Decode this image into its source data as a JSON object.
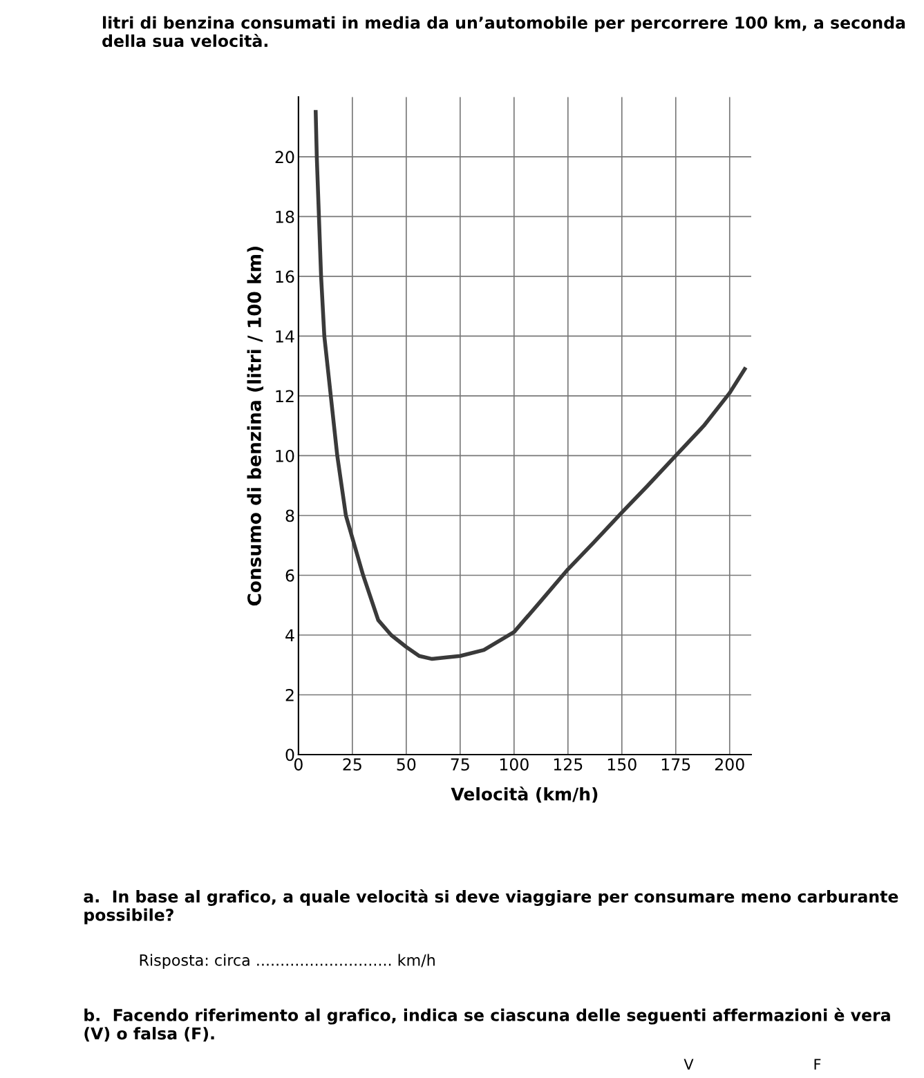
{
  "chart_data": {
    "type": "line",
    "title": "litri di benzina consumati in media da un’automobile per percorrere 100 km, a seconda della sua velocità.",
    "xlabel": "Velocità (km/h)",
    "ylabel": "Consumo di benzina (litri / 100 km)",
    "series": [
      {
        "color": "#3a3a3a",
        "x": [
          8,
          8.5,
          10.5,
          12,
          15,
          18,
          22,
          26,
          30,
          37,
          43,
          50,
          56,
          62,
          68,
          75,
          86,
          100,
          112,
          125,
          137,
          150,
          162,
          175,
          188,
          200,
          207
        ],
        "values": [
          21.5,
          20,
          16,
          14,
          12,
          10,
          8,
          7,
          6,
          4.5,
          4,
          3.6,
          3.3,
          3.2,
          3.25,
          3.3,
          3.5,
          4.1,
          5.1,
          6.2,
          7.1,
          8.1,
          9,
          10,
          11,
          12.1,
          12.9
        ]
      }
    ],
    "xlim": [
      0,
      210
    ],
    "ylim": [
      0,
      22
    ],
    "xticks": [
      0,
      25,
      50,
      75,
      100,
      125,
      150,
      175,
      200
    ],
    "yticks": [
      0,
      2,
      4,
      6,
      8,
      10,
      12,
      14,
      16,
      18,
      20
    ],
    "grid": true,
    "marker": "none",
    "line_style": "solid",
    "annotations": [
      "a.  In base al grafico, a quale velocità si deve viaggiare per consumare meno carburante possibile?",
      "Risposta: circa ............................ km/h",
      "b.  Facendo riferimento al grafico, indica se ciascuna delle seguenti affermazioni è vera (V) o falsa (F).",
      "V",
      "F"
    ]
  }
}
